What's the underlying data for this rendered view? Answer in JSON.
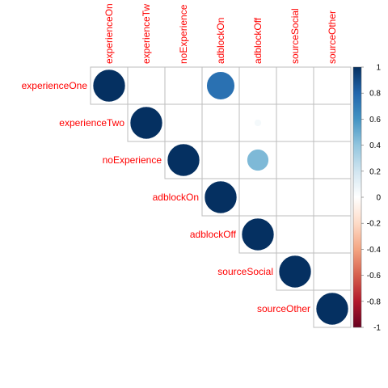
{
  "chart_data": {
    "type": "heatmap",
    "subtype": "correlation-upper",
    "variables": [
      "experienceOne",
      "experienceTwo",
      "noExperience",
      "adblockOn",
      "adblockOff",
      "sourceSocial",
      "sourceOther"
    ],
    "column_labels": [
      "experienceOn",
      "experienceTw",
      "noExperience",
      "adblockOn",
      "adblockOff",
      "sourceSocial",
      "sourceOther"
    ],
    "matrix": [
      [
        1,
        0,
        0,
        0.75,
        0,
        0,
        0
      ],
      [
        0,
        1,
        0,
        0,
        0.05,
        0,
        0
      ],
      [
        0,
        0,
        1,
        0,
        0.45,
        0,
        0
      ],
      [
        0,
        0,
        0,
        1,
        0,
        0,
        0
      ],
      [
        0,
        0,
        0,
        0,
        1,
        0,
        0
      ],
      [
        0,
        0,
        0,
        0,
        0,
        1,
        0
      ],
      [
        0,
        0,
        0,
        0,
        0,
        0,
        1
      ]
    ],
    "colorbar": {
      "ticks": [
        "1",
        "0.8",
        "0.6",
        "0.4",
        "0.2",
        "0",
        "-0.2",
        "-0.4",
        "-0.6",
        "-0.8",
        "-1"
      ],
      "range": [
        -1,
        1
      ],
      "colors": [
        "#67001F",
        "#B2182B",
        "#D6604D",
        "#F4A582",
        "#FDDBC7",
        "#FFFFFF",
        "#D1E5F0",
        "#92C5DE",
        "#4393C3",
        "#2166AC",
        "#053061"
      ]
    },
    "label_color": "#FF0000",
    "grid_color": "#BEBEBE"
  }
}
